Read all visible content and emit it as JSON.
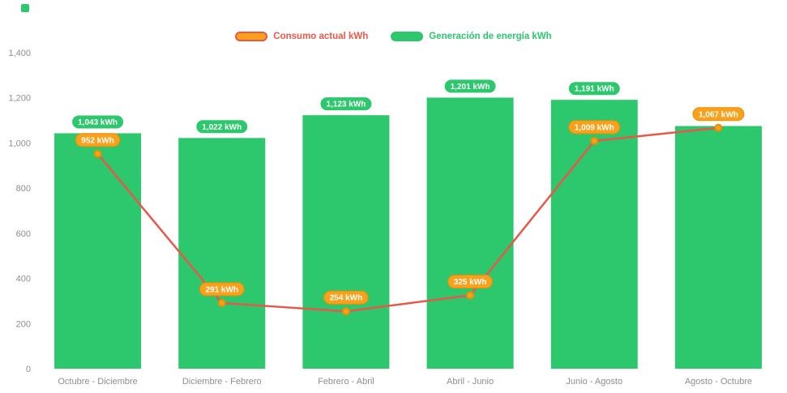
{
  "page": {
    "background": "#ffffff"
  },
  "corner_marker": {
    "color": "#2dc76d"
  },
  "legend": {
    "items": [
      {
        "label": "Consumo actual kWh",
        "text_color": "#e8584a",
        "swatch_fill": "#f9a11b",
        "swatch_border": "#e8584a"
      },
      {
        "label": "Generación de energía kWh",
        "text_color": "#2dc76d",
        "swatch_fill": "#2dc76d",
        "swatch_border": "#2dc76d"
      }
    ]
  },
  "chart_data": {
    "type": "bar",
    "subtype": "bar-and-line-combo",
    "categories": [
      "Octubre - Diciembre",
      "Diciembre - Febrero",
      "Febrero - Abril",
      "Abril - Junio",
      "Junio - Agosto",
      "Agosto - Octubre"
    ],
    "series": [
      {
        "name": "Generación de energía kWh",
        "type": "bar",
        "color": "#2dc76d",
        "values": [
          1043,
          1022,
          1123,
          1201,
          1191,
          1075
        ],
        "point_labels": [
          "1,043 kWh",
          "1,022 kWh",
          "1,123 kWh",
          "1,201 kWh",
          "1,191 kWh",
          null
        ],
        "badge_fill": "#2dc76d",
        "badge_text_color": "#ffffff"
      },
      {
        "name": "Consumo actual kWh",
        "type": "line",
        "color": "#e8584a",
        "marker_fill": "#f9a11b",
        "marker_border": "#e78f06",
        "values": [
          952,
          291,
          254,
          325,
          1009,
          1067
        ],
        "point_labels": [
          "952 kWh",
          "291 kWh",
          "254 kWh",
          "325 kWh",
          "1,009 kWh",
          "1,067 kWh"
        ],
        "badge_fill": "#f9a11b",
        "badge_border": "#e78f06",
        "badge_text_color": "#ffffff"
      }
    ],
    "ylim": [
      0,
      1400
    ],
    "yticks": [
      {
        "value": 1400,
        "label": "1,400"
      },
      {
        "value": 1200,
        "label": "1,200"
      },
      {
        "value": 1000,
        "label": "1,000"
      },
      {
        "value": 800,
        "label": "800"
      },
      {
        "value": 600,
        "label": "600"
      },
      {
        "value": 400,
        "label": "400"
      },
      {
        "value": 200,
        "label": "200"
      },
      {
        "value": 0,
        "label": "0"
      }
    ],
    "grid": false,
    "legend_position": "top",
    "axis_label_color": "#8e8e8e"
  }
}
